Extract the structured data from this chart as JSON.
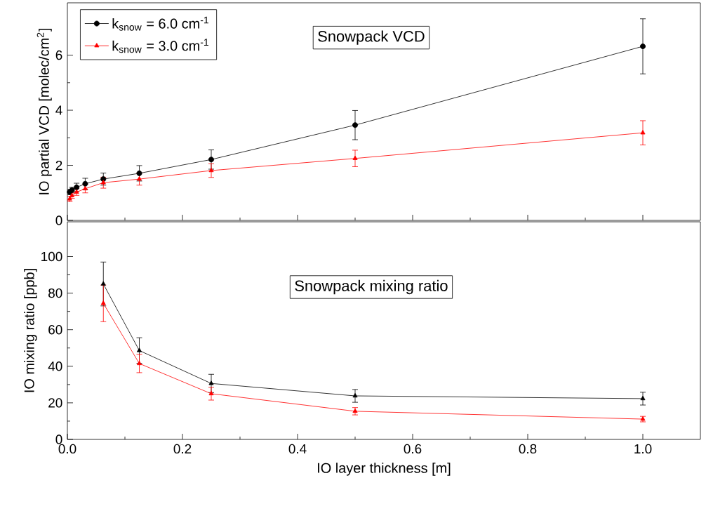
{
  "chart_data": [
    {
      "type": "line",
      "ylabel": "IO partial VCD [molec/cm$^{2}$]",
      "annotations": [
        "Snowpack VCD"
      ],
      "x": [
        0.004,
        0.008,
        0.016,
        0.031,
        0.0625,
        0.125,
        0.25,
        0.5,
        1.0
      ],
      "xlim": [
        0,
        1.1
      ],
      "xticks": [
        0,
        0.2,
        0.4,
        0.6,
        0.8,
        1.0
      ],
      "ylim": [
        0,
        7.9
      ],
      "yticks": [
        0,
        2,
        4,
        6
      ],
      "tick_labels": "y",
      "legend": "top left",
      "line_style": "solid",
      "series": [
        {
          "name": "k$_{snow}$ = 6.0 cm$^{-1}$",
          "color": "#000000",
          "marker": "circle",
          "values": [
            1.03,
            1.1,
            1.2,
            1.33,
            1.5,
            1.71,
            2.21,
            3.46,
            6.32
          ],
          "errors": [
            0.1,
            0.1,
            0.15,
            0.2,
            0.22,
            0.28,
            0.35,
            0.53,
            1.0
          ]
        },
        {
          "name": "k$_{snow}$ = 3.0 cm$^{-1}$",
          "color": "#ff0000",
          "marker": "triangle",
          "values": [
            0.78,
            0.9,
            1.03,
            1.15,
            1.37,
            1.5,
            1.81,
            2.25,
            3.18
          ],
          "errors": [
            0.1,
            0.1,
            0.12,
            0.15,
            0.2,
            0.22,
            0.25,
            0.3,
            0.44
          ]
        }
      ]
    },
    {
      "type": "line",
      "xlabel": "IO layer thickness [m]",
      "ylabel": "IO mixing ratio [ppb]",
      "annotations": [
        "Snowpack mixing ratio"
      ],
      "x": [
        0.0625,
        0.125,
        0.25,
        0.5,
        1.0
      ],
      "xlim": [
        0,
        1.1
      ],
      "xticks": [
        {
          "value": 0,
          "label": "0.0"
        },
        {
          "value": 0.2,
          "label": "0.2"
        },
        {
          "value": 0.4,
          "label": "0.4"
        },
        {
          "value": 0.6,
          "label": "0.6"
        },
        {
          "value": 0.8,
          "label": "0.8"
        },
        {
          "value": 1.0,
          "label": "1.0"
        }
      ],
      "ylim": [
        0,
        119
      ],
      "yticks": [
        0,
        20,
        40,
        60,
        80,
        100
      ],
      "line_style": "solid",
      "series": [
        {
          "color": "#000000",
          "marker": "triangle",
          "values": [
            85,
            48.6,
            30.6,
            23.8,
            22.3
          ],
          "errors": [
            12,
            7,
            5,
            3.5,
            3.5
          ]
        },
        {
          "color": "#ff0000",
          "marker": "triangle",
          "values": [
            74.4,
            41.5,
            25,
            15.4,
            11.1
          ],
          "errors": [
            10,
            5,
            3.5,
            2,
            1.5
          ]
        }
      ]
    }
  ]
}
